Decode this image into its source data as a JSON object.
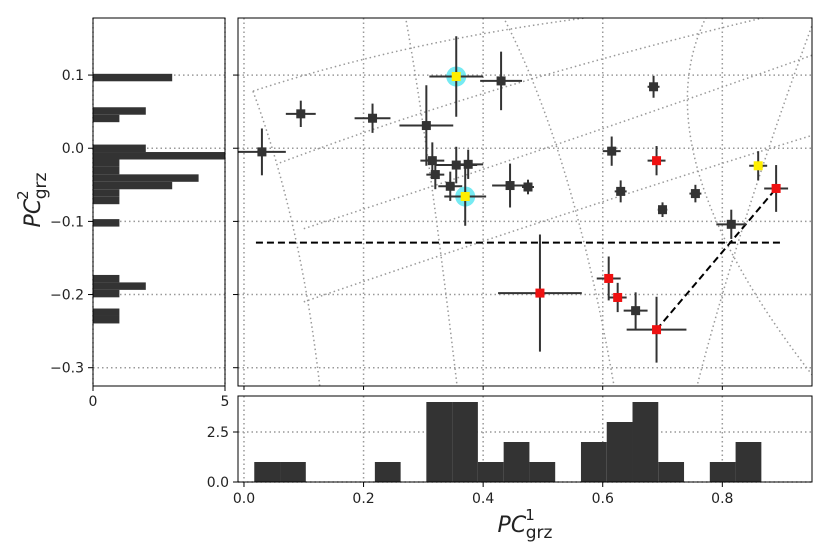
{
  "chart_data": {
    "type": "scatter",
    "xlabel": {
      "base": "PC",
      "sub": "grz",
      "sup": "1"
    },
    "ylabel": {
      "base": "PC",
      "sub": "grz",
      "sup": "2"
    },
    "main": {
      "xlim": [
        -0.01,
        0.95
      ],
      "ylim": [
        -0.325,
        0.178
      ],
      "xticks": [
        0.0,
        0.2,
        0.4,
        0.6,
        0.8
      ],
      "yticks": [
        -0.3,
        -0.2,
        -0.1,
        0.0,
        0.1
      ],
      "ytick_labels": [
        "−0.3",
        "−0.2",
        "−0.1",
        "0.0",
        "0.1"
      ],
      "xtick_labels": [
        "0.0",
        "0.2",
        "0.4",
        "0.6",
        "0.8"
      ],
      "points": [
        {
          "x": 0.03,
          "y": -0.005,
          "xerr": 0.04,
          "yerr": 0.032,
          "color": "#333333",
          "halo": false
        },
        {
          "x": 0.095,
          "y": 0.047,
          "xerr": 0.025,
          "yerr": 0.018,
          "color": "#333333",
          "halo": false
        },
        {
          "x": 0.215,
          "y": 0.041,
          "xerr": 0.03,
          "yerr": 0.02,
          "color": "#333333",
          "halo": false
        },
        {
          "x": 0.305,
          "y": 0.031,
          "xerr": 0.045,
          "yerr": 0.055,
          "color": "#333333",
          "halo": false
        },
        {
          "x": 0.355,
          "y": 0.098,
          "xerr": 0.045,
          "yerr": 0.055,
          "color": "#ffee00",
          "halo": true
        },
        {
          "x": 0.43,
          "y": 0.092,
          "xerr": 0.035,
          "yerr": 0.04,
          "color": "#333333",
          "halo": false
        },
        {
          "x": 0.315,
          "y": -0.017,
          "xerr": 0.02,
          "yerr": 0.025,
          "color": "#333333",
          "halo": false
        },
        {
          "x": 0.32,
          "y": -0.036,
          "xerr": 0.015,
          "yerr": 0.02,
          "color": "#333333",
          "halo": false
        },
        {
          "x": 0.345,
          "y": -0.052,
          "xerr": 0.02,
          "yerr": 0.02,
          "color": "#333333",
          "halo": false
        },
        {
          "x": 0.355,
          "y": -0.023,
          "xerr": 0.035,
          "yerr": 0.025,
          "color": "#333333",
          "halo": false
        },
        {
          "x": 0.375,
          "y": -0.022,
          "xerr": 0.025,
          "yerr": 0.02,
          "color": "#333333",
          "halo": false
        },
        {
          "x": 0.37,
          "y": -0.066,
          "xerr": 0.035,
          "yerr": 0.04,
          "color": "#ffee00",
          "halo": true
        },
        {
          "x": 0.445,
          "y": -0.051,
          "xerr": 0.03,
          "yerr": 0.03,
          "color": "#333333",
          "halo": false
        },
        {
          "x": 0.475,
          "y": -0.053,
          "xerr": 0.01,
          "yerr": 0.01,
          "color": "#333333",
          "halo": false
        },
        {
          "x": 0.615,
          "y": -0.004,
          "xerr": 0.015,
          "yerr": 0.02,
          "color": "#333333",
          "halo": false
        },
        {
          "x": 0.63,
          "y": -0.059,
          "xerr": 0.01,
          "yerr": 0.015,
          "color": "#333333",
          "halo": false
        },
        {
          "x": 0.685,
          "y": 0.084,
          "xerr": 0.01,
          "yerr": 0.015,
          "color": "#333333",
          "halo": false
        },
        {
          "x": 0.69,
          "y": -0.017,
          "xerr": 0.015,
          "yerr": 0.02,
          "color": "#ee1111",
          "halo": false
        },
        {
          "x": 0.7,
          "y": -0.084,
          "xerr": 0.008,
          "yerr": 0.01,
          "color": "#333333",
          "halo": false
        },
        {
          "x": 0.755,
          "y": -0.062,
          "xerr": 0.01,
          "yerr": 0.012,
          "color": "#333333",
          "halo": false
        },
        {
          "x": 0.815,
          "y": -0.104,
          "xerr": 0.025,
          "yerr": 0.02,
          "color": "#333333",
          "halo": false
        },
        {
          "x": 0.86,
          "y": -0.024,
          "xerr": 0.015,
          "yerr": 0.02,
          "color": "#ffee00",
          "halo": false
        },
        {
          "x": 0.89,
          "y": -0.055,
          "xerr": 0.02,
          "yerr": 0.032,
          "color": "#ee1111",
          "halo": false
        },
        {
          "x": 0.495,
          "y": -0.198,
          "xerr": 0.07,
          "yerr": 0.08,
          "color": "#ee1111",
          "halo": false
        },
        {
          "x": 0.61,
          "y": -0.178,
          "xerr": 0.02,
          "yerr": 0.03,
          "color": "#ee1111",
          "halo": false
        },
        {
          "x": 0.625,
          "y": -0.204,
          "xerr": 0.015,
          "yerr": 0.02,
          "color": "#ee1111",
          "halo": false
        },
        {
          "x": 0.655,
          "y": -0.222,
          "xerr": 0.02,
          "yerr": 0.025,
          "color": "#333333",
          "halo": false
        },
        {
          "x": 0.69,
          "y": -0.248,
          "xerr": 0.05,
          "yerr": 0.045,
          "color": "#ee1111",
          "halo": false
        }
      ],
      "dashed_lines": [
        {
          "x": [
            0.02,
            0.9
          ],
          "y": [
            -0.129,
            -0.129
          ]
        },
        {
          "x": [
            0.69,
            0.89
          ],
          "y": [
            -0.248,
            -0.055
          ]
        }
      ],
      "grid_curves": [
        [
          [
            0.015,
            0.078
          ],
          [
            0.32,
            0.16
          ],
          [
            0.7,
            0.19
          ]
        ],
        [
          [
            0.06,
            -0.02
          ],
          [
            0.45,
            0.1
          ],
          [
            0.93,
            0.19
          ]
        ],
        [
          [
            0.1,
            -0.11
          ],
          [
            0.55,
            0.01
          ],
          [
            0.96,
            0.13
          ]
        ],
        [
          [
            0.1,
            -0.21
          ],
          [
            0.6,
            -0.07
          ],
          [
            0.96,
            0.02
          ]
        ],
        [
          [
            0.015,
            0.078
          ],
          [
            0.1,
            -0.11
          ],
          [
            0.13,
            -0.35
          ]
        ],
        [
          [
            0.27,
            0.18
          ],
          [
            0.31,
            0.0
          ],
          [
            0.36,
            -0.35
          ]
        ],
        [
          [
            0.43,
            0.185
          ],
          [
            0.55,
            0.0
          ],
          [
            0.62,
            -0.33
          ]
        ],
        [
          [
            0.78,
            0.19
          ],
          [
            0.65,
            0.0
          ],
          [
            0.96,
            -0.32
          ]
        ],
        [
          [
            0.96,
            0.19
          ],
          [
            0.82,
            -0.12
          ],
          [
            0.75,
            -0.35
          ]
        ]
      ]
    },
    "hist_y": {
      "xlim": [
        0,
        5
      ],
      "xticks": [
        0,
        5
      ],
      "bin_width": 0.0102,
      "bins": [
        {
          "y": 0.0915,
          "count": 3
        },
        {
          "y": 0.0458,
          "count": 2
        },
        {
          "y": 0.0356,
          "count": 1
        },
        {
          "y": -0.0052,
          "count": 2
        },
        {
          "y": -0.0154,
          "count": 5
        },
        {
          "y": -0.0255,
          "count": 1
        },
        {
          "y": -0.0357,
          "count": 1
        },
        {
          "y": -0.0459,
          "count": 4
        },
        {
          "y": -0.0561,
          "count": 3
        },
        {
          "y": -0.0663,
          "count": 1
        },
        {
          "y": -0.0765,
          "count": 1
        },
        {
          "y": -0.1071,
          "count": 1
        },
        {
          "y": -0.1834,
          "count": 1
        },
        {
          "y": -0.1936,
          "count": 2
        },
        {
          "y": -0.2038,
          "count": 1
        },
        {
          "y": -0.2293,
          "count": 1
        },
        {
          "y": -0.2395,
          "count": 1
        }
      ]
    },
    "hist_x": {
      "ylim": [
        0,
        4.3
      ],
      "yticks": [
        0.0,
        2.5
      ],
      "ytick_labels": [
        "0.0",
        "2.5"
      ],
      "bin_width": 0.0431,
      "bins": [
        {
          "x": 0.0172,
          "count": 1
        },
        {
          "x": 0.0603,
          "count": 1
        },
        {
          "x": 0.2189,
          "count": 1
        },
        {
          "x": 0.305,
          "count": 4
        },
        {
          "x": 0.3481,
          "count": 4
        },
        {
          "x": 0.3912,
          "count": 1
        },
        {
          "x": 0.4343,
          "count": 2
        },
        {
          "x": 0.4774,
          "count": 1
        },
        {
          "x": 0.5636,
          "count": 2
        },
        {
          "x": 0.6067,
          "count": 3
        },
        {
          "x": 0.6498,
          "count": 4
        },
        {
          "x": 0.6929,
          "count": 1
        },
        {
          "x": 0.7791,
          "count": 1
        },
        {
          "x": 0.8222,
          "count": 2
        }
      ]
    }
  }
}
